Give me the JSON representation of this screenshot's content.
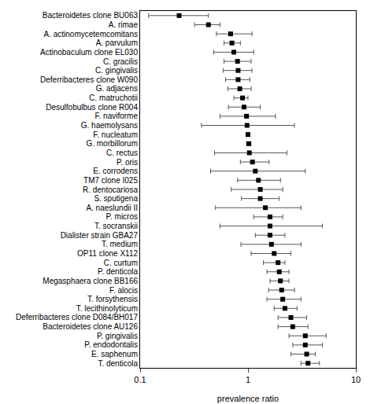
{
  "chart_data": {
    "type": "forest",
    "orientation": "horizontal",
    "log": "x",
    "grid": false,
    "marker": "square",
    "color": "#000000",
    "x_label": "prevalence ratio",
    "xlim": [
      0.1,
      10
    ],
    "xticks": [
      0.1,
      1,
      10
    ],
    "reference": 1,
    "categories": [
      "Bacteroidetes clone BU063",
      "A. rimae",
      "A. actinomycetemcomitans",
      "A. parvulum",
      "Actinobaculum clone EL030",
      "C. gracilis",
      "C. gingivalis",
      "Deferribacteres clone W090",
      "G. adjacens",
      "C. matruchotii",
      "Desulfobulbus clone R004",
      "F. naviforme",
      "G. haemolysans",
      "F. nucleatum",
      "G. morbillorum",
      "C. rectus",
      "P. oris",
      "E. corrodens",
      "TM7 clone I025",
      "R. dentocariosa",
      "S. sputigena",
      "A. naeslundii II",
      "P. micros",
      "T. socranskii",
      "Dialister strain GBA27",
      "T. medium",
      "OP11 clone X112",
      "C. curtum",
      "P. denticola",
      "Megasphaera clone BB166",
      "F. alocis",
      "T. forsythensis",
      "T. lecithinolyticum",
      "Deferribacteres clone D084/BH017",
      "Bacteroidetes clone AU126",
      "P. gingivalis",
      "P. endodontalis",
      "E. saphenum",
      "T. denticola"
    ],
    "values": [
      0.23,
      0.43,
      0.69,
      0.71,
      0.74,
      0.8,
      0.81,
      0.81,
      0.84,
      0.89,
      0.92,
      0.97,
      0.98,
      1.0,
      1.02,
      1.03,
      1.1,
      1.17,
      1.25,
      1.3,
      1.3,
      1.45,
      1.6,
      1.6,
      1.6,
      1.65,
      1.75,
      1.9,
      1.95,
      2.0,
      2.05,
      2.1,
      2.2,
      2.5,
      2.6,
      3.4,
      3.4,
      3.5,
      3.6
    ],
    "lower": [
      0.12,
      0.32,
      0.51,
      0.6,
      0.48,
      0.6,
      0.59,
      0.62,
      0.65,
      0.74,
      0.66,
      0.55,
      0.37,
      0.97,
      0.97,
      0.49,
      0.85,
      0.45,
      0.8,
      0.7,
      0.87,
      0.5,
      1.13,
      0.55,
      1.17,
      0.86,
      1.07,
      1.39,
      1.5,
      1.6,
      1.55,
      1.5,
      1.75,
      1.9,
      1.9,
      2.4,
      2.6,
      2.5,
      3.1
    ],
    "upper": [
      0.43,
      0.55,
      1.09,
      0.85,
      1.13,
      1.07,
      1.09,
      1.04,
      1.07,
      1.0,
      1.3,
      1.8,
      2.7,
      1.03,
      1.06,
      2.3,
      1.57,
      3.4,
      2.0,
      2.1,
      1.95,
      3.1,
      2.1,
      4.9,
      2.2,
      3.1,
      2.5,
      2.2,
      2.4,
      2.4,
      2.7,
      3.1,
      2.85,
      3.5,
      3.6,
      5.3,
      4.9,
      4.2,
      4.6
    ]
  }
}
